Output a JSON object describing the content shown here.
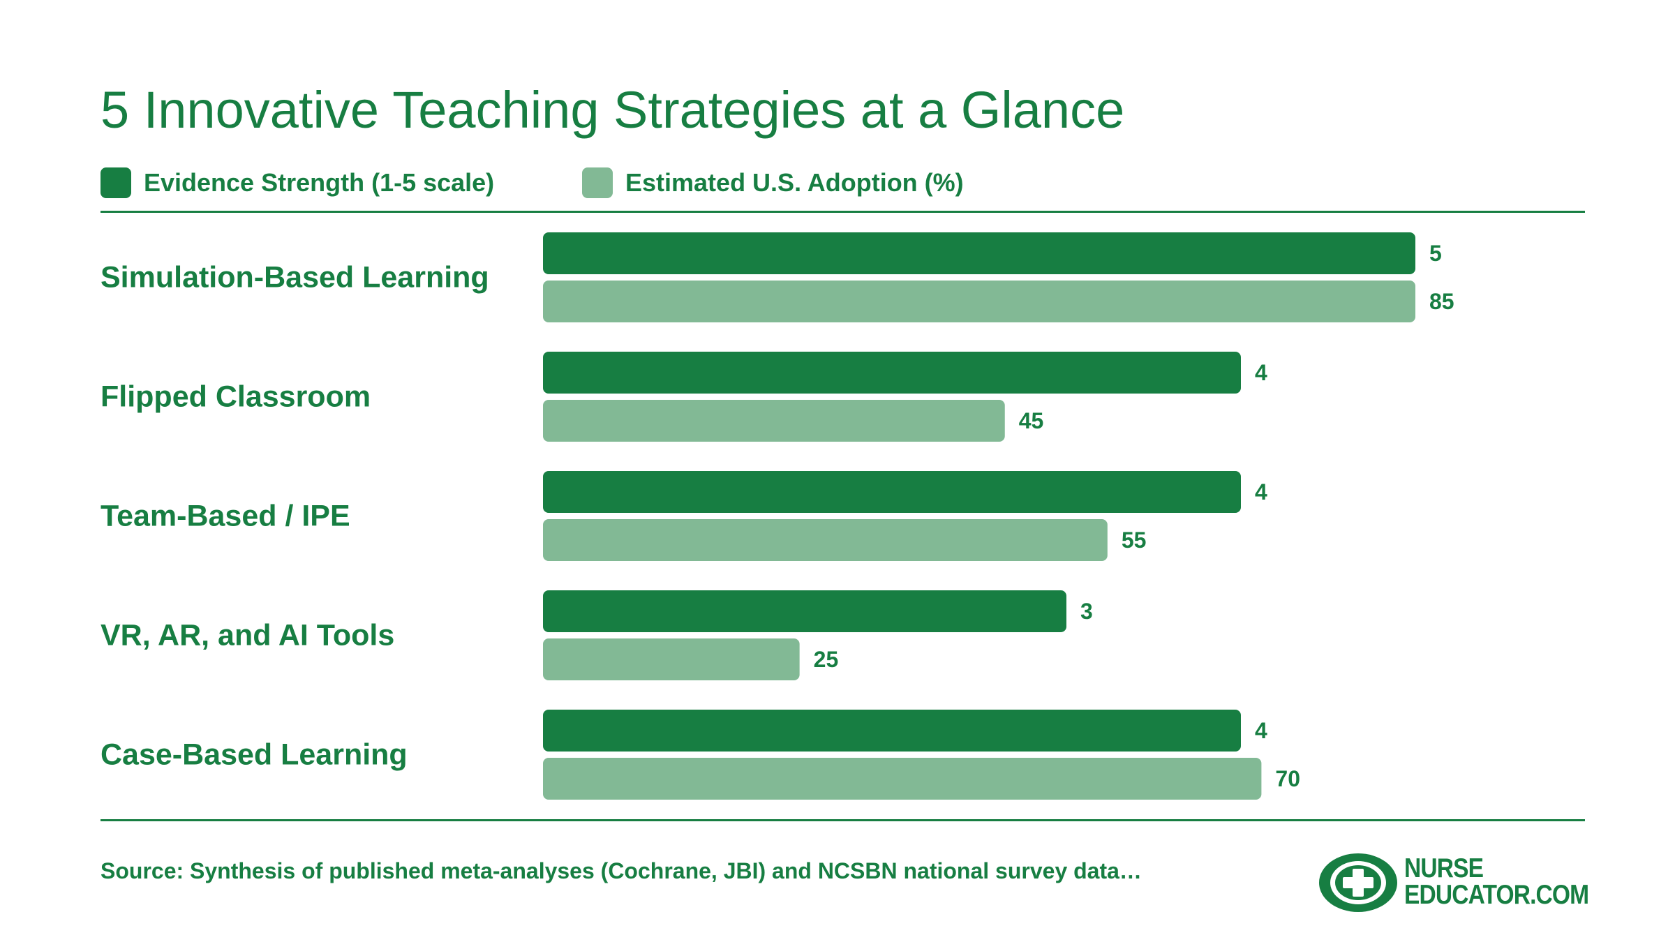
{
  "title": "5 Innovative Teaching Strategies at a Glance",
  "colors": {
    "dark_green": "#177e42",
    "light_green": "#82b995",
    "white": "#ffffff"
  },
  "chart_data": {
    "type": "bar",
    "orientation": "horizontal",
    "categories": [
      "Simulation-Based Learning",
      "Flipped Classroom",
      "Team-Based / IPE",
      "VR, AR, and AI Tools",
      "Case-Based Learning"
    ],
    "series": [
      {
        "name": "Evidence Strength (1-5 scale)",
        "values": [
          5,
          4,
          4,
          3,
          4
        ],
        "max": 5,
        "color": "#177e42"
      },
      {
        "name": "Estimated U.S. Adoption (%)",
        "values": [
          85,
          45,
          55,
          25,
          70
        ],
        "max": 85,
        "color": "#82b995"
      }
    ],
    "legend_position": "top-left",
    "grid": false
  },
  "source": "Source: Synthesis of published meta-analyses (Cochrane, JBI) and NCSBN national survey data…",
  "logo": {
    "line1": "NURSE",
    "line2": "EDUCATOR.COM",
    "icon": "cross-logo-icon"
  }
}
